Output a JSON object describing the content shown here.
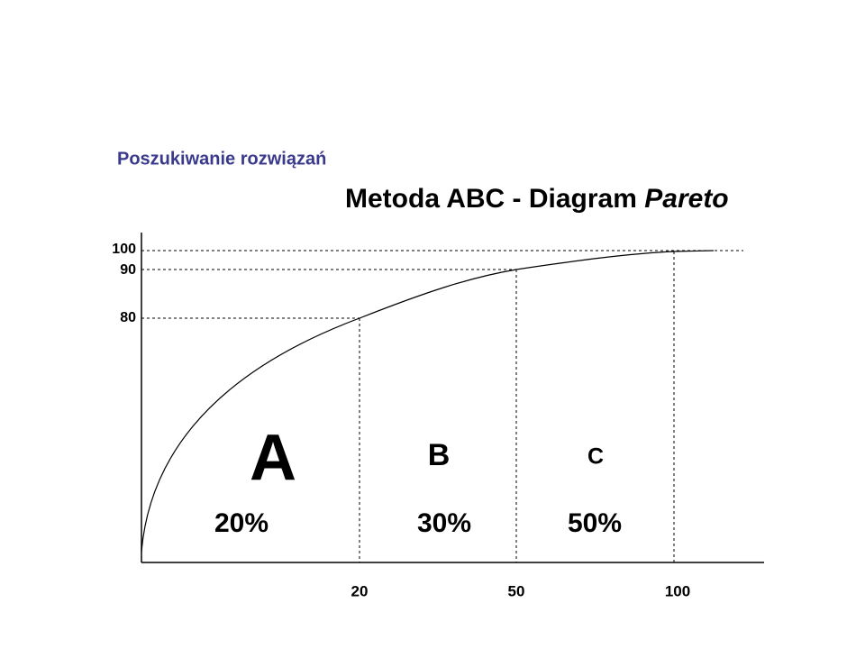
{
  "header": {
    "subtitle": "Poszukiwanie rozwiązań"
  },
  "title": {
    "text": "Metoda ABC - Diagram ",
    "emphasis": "Pareto"
  },
  "y_axis": {
    "labels": [
      "100",
      "90",
      "80"
    ]
  },
  "x_axis": {
    "labels": [
      "20",
      "50",
      "100"
    ]
  },
  "regions": [
    {
      "label": "A",
      "share": "20%"
    },
    {
      "label": "B",
      "share": "30%"
    },
    {
      "label": "C",
      "share": "50%"
    }
  ]
}
